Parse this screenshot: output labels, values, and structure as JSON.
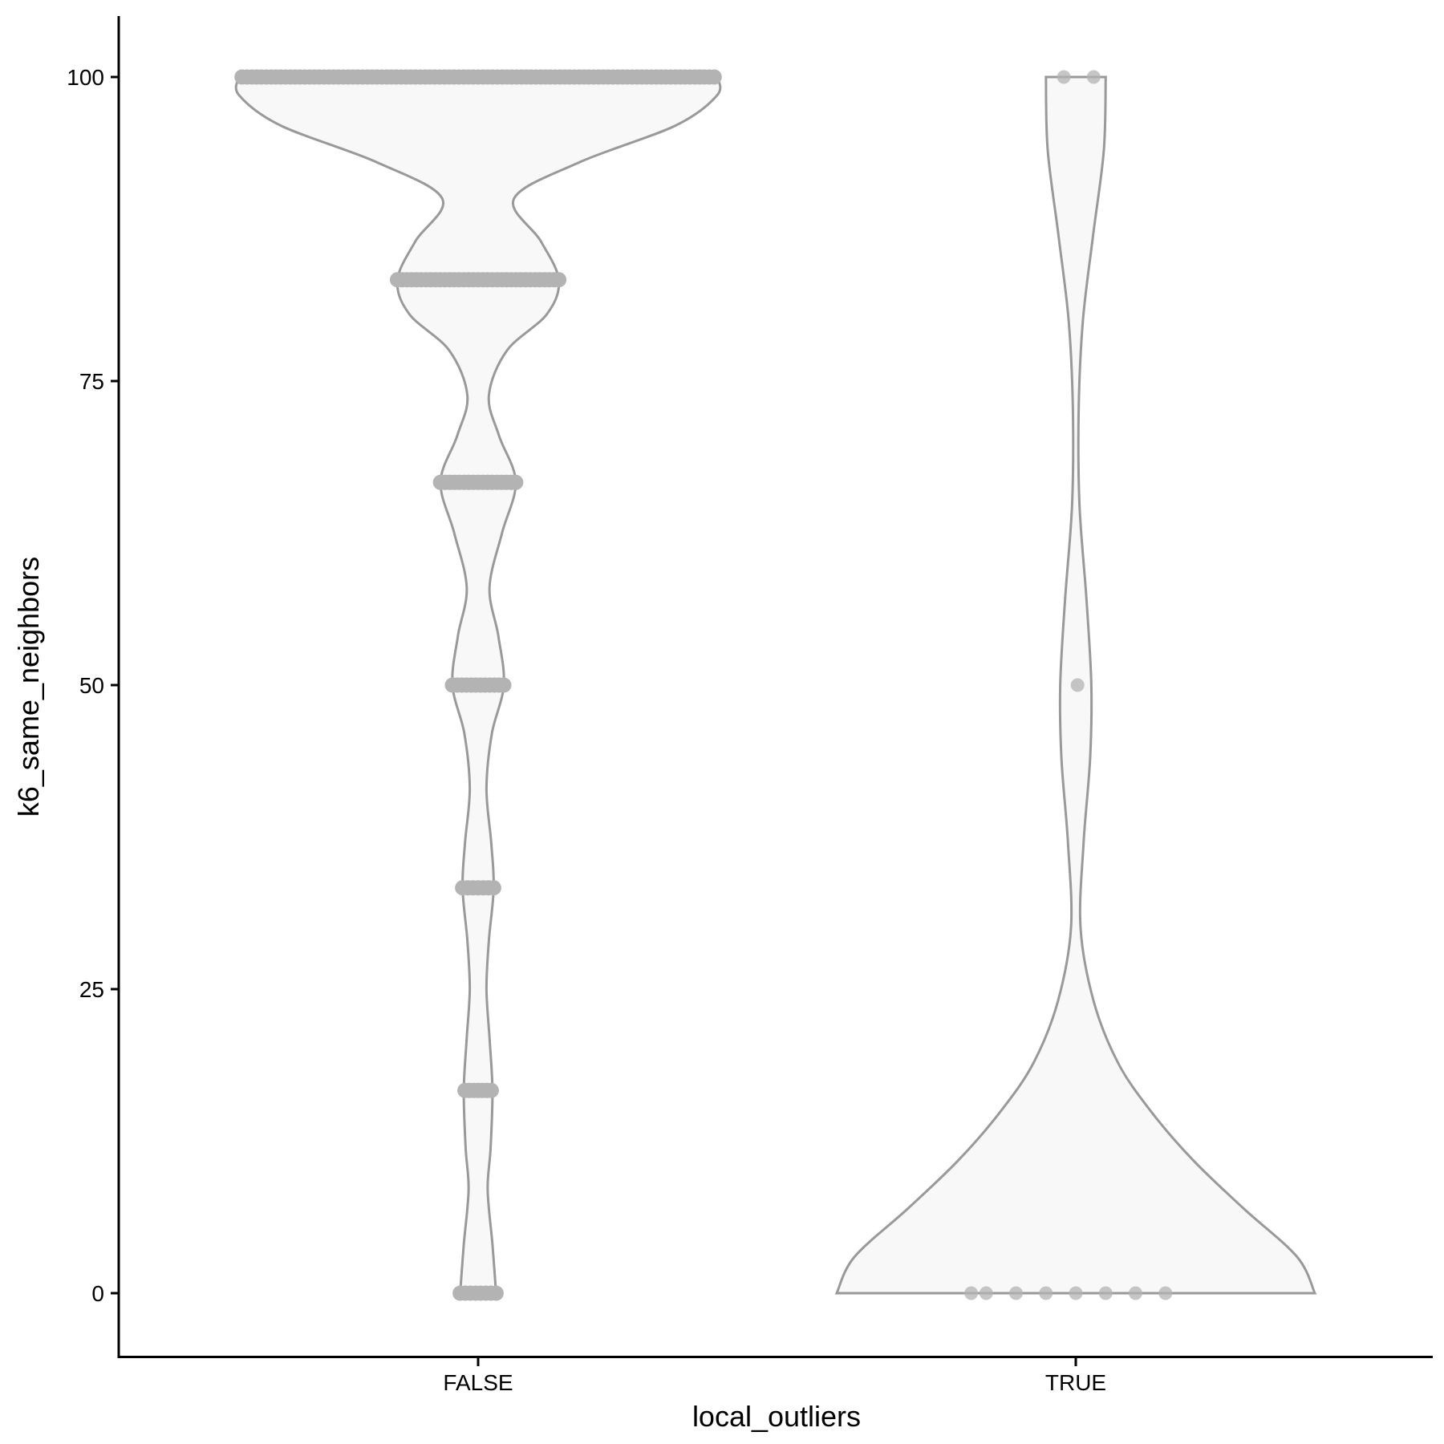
{
  "chart_data": {
    "type": "violin",
    "title": "",
    "xlabel": "local_outliers",
    "ylabel": "k6_same_neighbors",
    "categories": [
      "FALSE",
      "TRUE"
    ],
    "y_ticks": [
      0,
      25,
      50,
      75,
      100
    ],
    "ylim": [
      -5,
      105
    ],
    "grid": false,
    "legend": "none",
    "colors": {
      "violin_fill": "#f8f8f8",
      "violin_outline": "#999999",
      "points": "#b3b3b3",
      "axis": "#000000"
    },
    "violins": [
      {
        "category": "FALSE",
        "density_half_width": [
          {
            "y": 0,
            "w": 0.03
          },
          {
            "y": 4,
            "w": 0.024
          },
          {
            "y": 8.5,
            "w": 0.016
          },
          {
            "y": 12,
            "w": 0.021
          },
          {
            "y": 16.7,
            "w": 0.024
          },
          {
            "y": 21,
            "w": 0.019
          },
          {
            "y": 25,
            "w": 0.014
          },
          {
            "y": 29,
            "w": 0.018
          },
          {
            "y": 33.3,
            "w": 0.026
          },
          {
            "y": 37,
            "w": 0.022
          },
          {
            "y": 41.5,
            "w": 0.014
          },
          {
            "y": 46,
            "w": 0.023
          },
          {
            "y": 50,
            "w": 0.043
          },
          {
            "y": 54,
            "w": 0.034
          },
          {
            "y": 58,
            "w": 0.019
          },
          {
            "y": 62.5,
            "w": 0.04
          },
          {
            "y": 66.7,
            "w": 0.063
          },
          {
            "y": 70.5,
            "w": 0.035
          },
          {
            "y": 73.8,
            "w": 0.018
          },
          {
            "y": 77.5,
            "w": 0.048
          },
          {
            "y": 80.5,
            "w": 0.115
          },
          {
            "y": 83.3,
            "w": 0.135
          },
          {
            "y": 86.5,
            "w": 0.105
          },
          {
            "y": 90,
            "w": 0.06
          },
          {
            "y": 93,
            "w": 0.17
          },
          {
            "y": 96,
            "w": 0.33
          },
          {
            "y": 98.5,
            "w": 0.4
          },
          {
            "y": 100,
            "w": 0.4
          }
        ],
        "points": [
          {
            "y": 0,
            "x_spread": 0.03
          },
          {
            "y": 16.67,
            "x_spread": 0.022
          },
          {
            "y": 33.33,
            "x_spread": 0.026
          },
          {
            "y": 50,
            "x_spread": 0.043
          },
          {
            "y": 66.67,
            "x_spread": 0.063
          },
          {
            "y": 83.33,
            "x_spread": 0.135
          },
          {
            "y": 100,
            "x_spread": 0.395
          }
        ]
      },
      {
        "category": "TRUE",
        "density_half_width": [
          {
            "y": 0,
            "w": 0.4
          },
          {
            "y": 3,
            "w": 0.37
          },
          {
            "y": 7,
            "w": 0.28
          },
          {
            "y": 11,
            "w": 0.195
          },
          {
            "y": 15,
            "w": 0.125
          },
          {
            "y": 19,
            "w": 0.07
          },
          {
            "y": 24,
            "w": 0.03
          },
          {
            "y": 30,
            "w": 0.008
          },
          {
            "y": 37,
            "w": 0.013
          },
          {
            "y": 44,
            "w": 0.024
          },
          {
            "y": 50,
            "w": 0.026
          },
          {
            "y": 57,
            "w": 0.018
          },
          {
            "y": 65,
            "w": 0.006
          },
          {
            "y": 73,
            "w": 0.005
          },
          {
            "y": 80,
            "w": 0.012
          },
          {
            "y": 87,
            "w": 0.029
          },
          {
            "y": 94,
            "w": 0.047
          },
          {
            "y": 100,
            "w": 0.05
          }
        ],
        "points": [
          {
            "y": 0,
            "x_offset": -0.175
          },
          {
            "y": 0,
            "x_offset": -0.15
          },
          {
            "y": 0,
            "x_offset": -0.1
          },
          {
            "y": 0,
            "x_offset": -0.05
          },
          {
            "y": 0,
            "x_offset": 0.0
          },
          {
            "y": 0,
            "x_offset": 0.05
          },
          {
            "y": 0,
            "x_offset": 0.1
          },
          {
            "y": 0,
            "x_offset": 0.15
          },
          {
            "y": 50,
            "x_offset": 0.003
          },
          {
            "y": 100,
            "x_offset": -0.02
          },
          {
            "y": 100,
            "x_offset": 0.03
          }
        ]
      }
    ]
  }
}
